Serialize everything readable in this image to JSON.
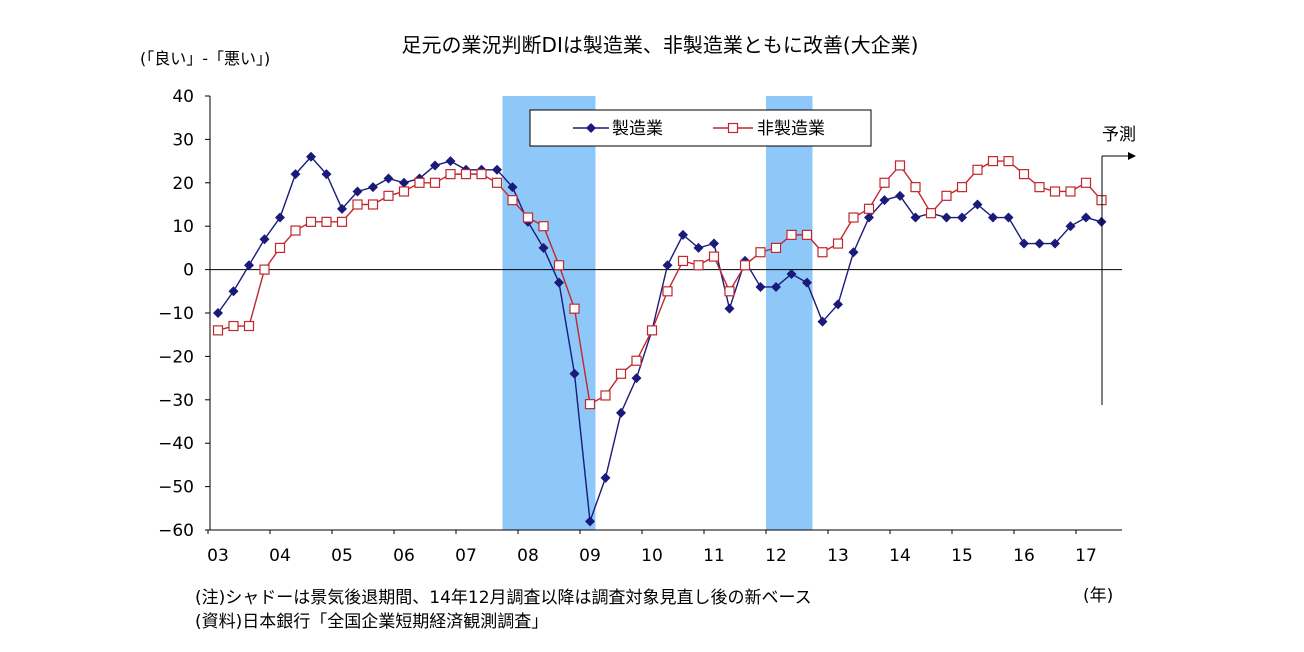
{
  "chart_data": {
    "type": "line",
    "title": "足元の業況判断DIは製造業、非製造業ともに改善(大企業)",
    "ylabel": "(「良い」-「悪い」)",
    "xlabel": "(年)",
    "ylim": [
      -60,
      40
    ],
    "yticks": [
      40,
      30,
      20,
      10,
      0,
      -10,
      -20,
      -30,
      -40,
      -50,
      -60
    ],
    "year_labels": [
      "03",
      "04",
      "05",
      "06",
      "07",
      "08",
      "09",
      "10",
      "11",
      "12",
      "13",
      "14",
      "15",
      "16",
      "17"
    ],
    "forecast_label": "予測",
    "shaded_periods": [
      {
        "start": 2007.75,
        "end": 2009.25
      },
      {
        "start": 2012.0,
        "end": 2012.75
      }
    ],
    "x": [
      2003.0,
      2003.25,
      2003.5,
      2003.75,
      2004.0,
      2004.25,
      2004.5,
      2004.75,
      2005.0,
      2005.25,
      2005.5,
      2005.75,
      2006.0,
      2006.25,
      2006.5,
      2006.75,
      2007.0,
      2007.25,
      2007.5,
      2007.75,
      2008.0,
      2008.25,
      2008.5,
      2008.75,
      2009.0,
      2009.25,
      2009.5,
      2009.75,
      2010.0,
      2010.25,
      2010.5,
      2010.75,
      2011.0,
      2011.25,
      2011.5,
      2011.75,
      2012.0,
      2012.25,
      2012.5,
      2012.75,
      2013.0,
      2013.25,
      2013.5,
      2013.75,
      2014.0,
      2014.25,
      2014.5,
      2014.75,
      2015.0,
      2015.25,
      2015.5,
      2015.75,
      2016.0,
      2016.25,
      2016.5,
      2016.75,
      2017.0,
      2017.25
    ],
    "series": [
      {
        "name": "製造業",
        "color": "#1a1a7a",
        "marker": "diamond-filled",
        "values": [
          -10,
          -5,
          1,
          7,
          12,
          22,
          26,
          22,
          14,
          18,
          19,
          21,
          20,
          21,
          24,
          25,
          23,
          23,
          23,
          19,
          11,
          5,
          -3,
          -24,
          -58,
          -48,
          -33,
          -25,
          -14,
          1,
          8,
          5,
          6,
          -9,
          2,
          -4,
          -4,
          -1,
          -3,
          -12,
          -8,
          4,
          12,
          16,
          17,
          12,
          13,
          12,
          12,
          15,
          12,
          12,
          6,
          6,
          6,
          10,
          12,
          11
        ]
      },
      {
        "name": "非製造業",
        "color": "#c0282d",
        "marker": "square-open",
        "values": [
          -14,
          -13,
          -13,
          0,
          5,
          9,
          11,
          11,
          11,
          15,
          15,
          17,
          18,
          20,
          20,
          22,
          22,
          22,
          20,
          16,
          12,
          10,
          1,
          -9,
          -31,
          -29,
          -24,
          -21,
          -14,
          -5,
          2,
          1,
          3,
          -5,
          1,
          4,
          5,
          8,
          8,
          4,
          6,
          12,
          14,
          20,
          24,
          19,
          13,
          17,
          19,
          23,
          25,
          25,
          22,
          19,
          18,
          18,
          20,
          16
        ]
      }
    ],
    "legend_position": "top-center",
    "grid": false
  },
  "notes": {
    "line1": "(注)シャドーは景気後退期間、14年12月調査以降は調査対象見直し後の新ベース",
    "line2": "(資料)日本銀行「全国企業短期経済観測調査」"
  }
}
